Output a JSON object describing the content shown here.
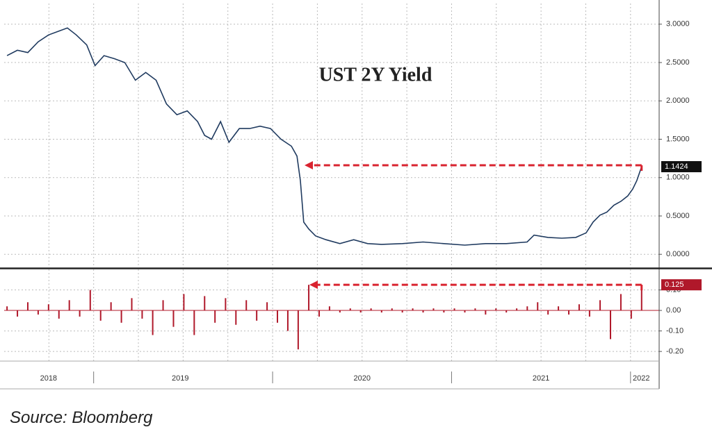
{
  "chart_data": [
    {
      "type": "line",
      "title": "UST 2Y Yield",
      "color": "#1f3a5f",
      "x": [
        2018.516,
        2018.574,
        2018.632,
        2018.69,
        2018.748,
        2018.806,
        2018.853,
        2018.903,
        2018.961,
        2019.008,
        2019.058,
        2019.116,
        2019.174,
        2019.233,
        2019.291,
        2019.349,
        2019.407,
        2019.465,
        2019.523,
        2019.581,
        2019.62,
        2019.659,
        2019.709,
        2019.756,
        2019.814,
        2019.872,
        2019.93,
        2019.988,
        2020.047,
        2020.105,
        2020.136,
        2020.155,
        2020.174,
        2020.202,
        2020.24,
        2020.298,
        2020.376,
        2020.453,
        2020.531,
        2020.609,
        2020.725,
        2020.841,
        2020.957,
        2021.074,
        2021.19,
        2021.306,
        2021.422,
        2021.461,
        2021.539,
        2021.616,
        2021.694,
        2021.752,
        2021.791,
        2021.829,
        2021.868,
        2021.907,
        2021.946,
        2021.984,
        2022.012,
        2022.035,
        2022.062
      ],
      "values": [
        2.59,
        2.66,
        2.63,
        2.77,
        2.86,
        2.91,
        2.95,
        2.86,
        2.73,
        2.46,
        2.59,
        2.55,
        2.5,
        2.27,
        2.37,
        2.27,
        1.96,
        1.82,
        1.87,
        1.73,
        1.55,
        1.5,
        1.73,
        1.46,
        1.64,
        1.64,
        1.67,
        1.64,
        1.5,
        1.41,
        1.28,
        0.96,
        0.42,
        0.33,
        0.24,
        0.19,
        0.14,
        0.19,
        0.14,
        0.13,
        0.14,
        0.16,
        0.14,
        0.12,
        0.14,
        0.14,
        0.16,
        0.25,
        0.22,
        0.21,
        0.22,
        0.28,
        0.42,
        0.51,
        0.55,
        0.64,
        0.69,
        0.76,
        0.85,
        0.96,
        1.1424
      ],
      "xlim": [
        2018.5,
        2022.16
      ],
      "ylim": [
        -0.17,
        3.27
      ],
      "yticks": [
        {
          "value": 0,
          "label": "0.0000"
        },
        {
          "value": 0.5,
          "label": "0.5000"
        },
        {
          "value": 1,
          "label": "1.0000"
        },
        {
          "value": 1.5,
          "label": "1.5000"
        },
        {
          "value": 2,
          "label": "2.0000"
        },
        {
          "value": 2.5,
          "label": "2.5000"
        },
        {
          "value": 3,
          "label": "3.0000"
        }
      ],
      "xgrid": [
        2018.75,
        2019,
        2019.25,
        2019.5,
        2019.75,
        2020,
        2020.25,
        2020.5,
        2020.75,
        2021,
        2021.25,
        2021.5,
        2021.75,
        2022
      ],
      "grid": true,
      "tag_color": "#111",
      "arrow_color": "#d9232f"
    },
    {
      "type": "spikes",
      "color": "#b0182a",
      "x": [
        2018.516,
        2018.574,
        2018.632,
        2018.69,
        2018.748,
        2018.806,
        2018.864,
        2018.922,
        2018.981,
        2019.039,
        2019.097,
        2019.155,
        2019.213,
        2019.271,
        2019.33,
        2019.388,
        2019.446,
        2019.504,
        2019.562,
        2019.62,
        2019.678,
        2019.737,
        2019.795,
        2019.853,
        2019.911,
        2019.969,
        2020.027,
        2020.085,
        2020.143,
        2020.202,
        2020.26,
        2020.318,
        2020.376,
        2020.434,
        2020.492,
        2020.55,
        2020.609,
        2020.667,
        2020.725,
        2020.783,
        2020.841,
        2020.899,
        2020.957,
        2021.016,
        2021.074,
        2021.132,
        2021.19,
        2021.248,
        2021.306,
        2021.364,
        2021.423,
        2021.481,
        2021.539,
        2021.597,
        2021.655,
        2021.713,
        2021.771,
        2021.83,
        2021.888,
        2021.946,
        2022.004,
        2022.062
      ],
      "values": [
        0.02,
        -0.03,
        0.04,
        -0.02,
        0.03,
        -0.04,
        0.05,
        -0.03,
        0.1,
        -0.05,
        0.04,
        -0.06,
        0.06,
        -0.04,
        -0.12,
        0.05,
        -0.08,
        0.08,
        -0.12,
        0.07,
        -0.06,
        0.06,
        -0.07,
        0.05,
        -0.05,
        0.04,
        -0.06,
        -0.1,
        -0.19,
        0.125,
        -0.03,
        0.02,
        -0.01,
        0.01,
        -0.01,
        0.01,
        -0.01,
        0.01,
        -0.01,
        0.01,
        -0.01,
        0.01,
        -0.01,
        0.01,
        -0.01,
        0.01,
        -0.02,
        0.01,
        -0.01,
        0.01,
        0.02,
        0.04,
        -0.02,
        0.02,
        -0.02,
        0.03,
        -0.03,
        0.05,
        -0.14,
        0.08,
        -0.04,
        0.125
      ],
      "xlim": [
        2018.5,
        2022.16
      ],
      "ylim": [
        -0.247,
        0.2
      ],
      "yticks": [
        {
          "value": -0.2,
          "label": "-0.20"
        },
        {
          "value": -0.1,
          "label": "-0.10"
        },
        {
          "value": 0,
          "label": "0.00"
        },
        {
          "value": 0.1,
          "label": "0.10"
        }
      ],
      "xticks": [
        {
          "value": 2018.748,
          "label": "2018"
        },
        {
          "value": 2019.484,
          "label": "2019"
        },
        {
          "value": 2020.5,
          "label": "2020"
        },
        {
          "value": 2021.5,
          "label": "2021"
        },
        {
          "value": 2022.06,
          "label": "2022"
        }
      ],
      "xseparators": [
        2019,
        2020,
        2021,
        2022
      ],
      "xgrid": [
        2018.75,
        2019,
        2019.25,
        2019.5,
        2019.75,
        2020,
        2020.25,
        2020.5,
        2020.75,
        2021,
        2021.25,
        2021.5,
        2021.75,
        2022
      ],
      "grid": true,
      "tag_color": "#b0182a",
      "arrow_color": "#d9232f"
    }
  ],
  "source": "Source: Bloomberg"
}
